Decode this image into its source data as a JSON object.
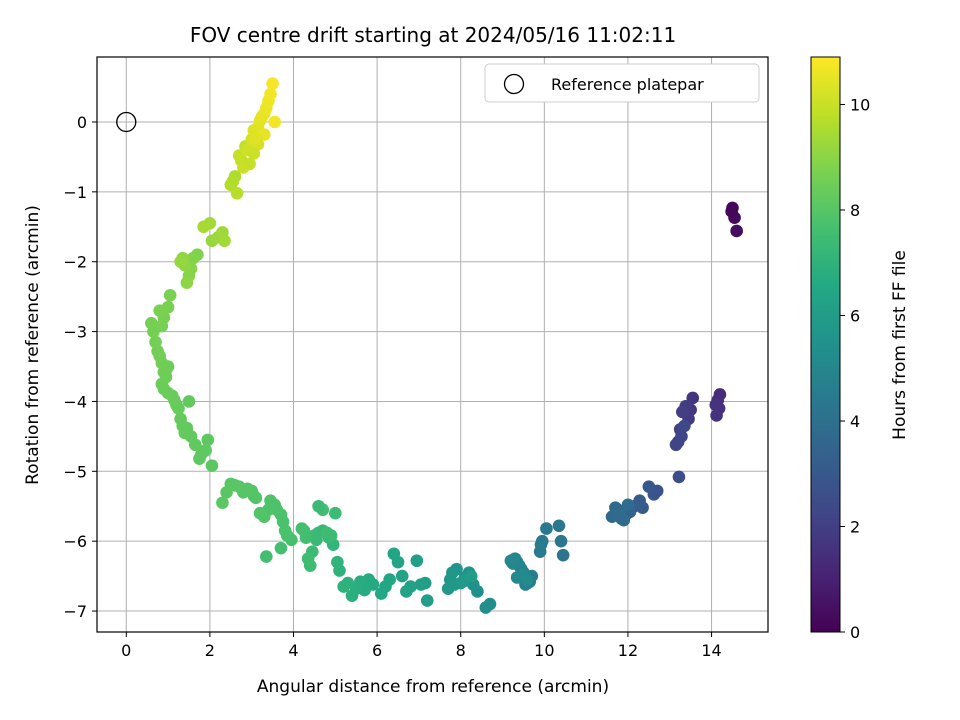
{
  "chart_data": {
    "type": "scatter",
    "title": "FOV centre drift starting at 2024/05/16 11:02:11",
    "xlabel": "Angular distance from reference (arcmin)",
    "ylabel": "Rotation from reference (arcmin)",
    "xlim": [
      -0.7,
      15.35
    ],
    "ylim": [
      -7.3,
      0.93
    ],
    "xticks": [
      0,
      2,
      4,
      6,
      8,
      10,
      12,
      14
    ],
    "yticks": [
      -7,
      -6,
      -5,
      -4,
      -3,
      -2,
      -1,
      0
    ],
    "grid": true,
    "legend_position": "top-right",
    "legend": {
      "label": "Reference platepar"
    },
    "reference_point": {
      "x": 0,
      "y": 0
    },
    "colorbar": {
      "label": "Hours from first FF file",
      "range": [
        0,
        10.9
      ],
      "ticks": [
        0,
        2,
        4,
        6,
        8,
        10
      ],
      "colormap": "viridis"
    },
    "series": [
      {
        "x": [
          14.5,
          14.55,
          14.6,
          14.48,
          14.2,
          14.15,
          14.18,
          14.12,
          14.1,
          13.55,
          13.5,
          13.45,
          13.38,
          13.3,
          13.25,
          13.2,
          13.15,
          13.28,
          13.35,
          13.22,
          12.7,
          12.62,
          12.5,
          12.35,
          12.28,
          12.15,
          12.05,
          11.95,
          11.85,
          11.75,
          11.62,
          11.7,
          11.8,
          11.9,
          12.0,
          10.45,
          10.4,
          10.35,
          10.05,
          9.95,
          9.9,
          9.92,
          9.7,
          9.65,
          9.6,
          9.55,
          9.5,
          9.45,
          9.4,
          9.35,
          9.3,
          9.25,
          9.2,
          9.35,
          9.48,
          9.58,
          8.7,
          8.6,
          8.4,
          8.3,
          8.2,
          8.1,
          8.0,
          7.9,
          7.8,
          7.75,
          7.7,
          7.85,
          8.05,
          8.25,
          7.2,
          7.15,
          7.05,
          6.95,
          6.8,
          6.7,
          6.6,
          6.5,
          6.4,
          6.3,
          6.2,
          6.1,
          5.9,
          5.8,
          5.7,
          5.6,
          5.5,
          5.4,
          5.3,
          5.2,
          5.1,
          5.05,
          4.95,
          4.85,
          4.7,
          4.6,
          4.55,
          4.5,
          4.45,
          4.4,
          4.35,
          4.3,
          4.25,
          4.2,
          4.7,
          4.8,
          4.9,
          5.0,
          4.6,
          3.95,
          3.85,
          3.8,
          3.75,
          3.7,
          3.6,
          3.55,
          3.45,
          3.4,
          3.3,
          3.2,
          3.1,
          3.05,
          3.0,
          2.9,
          2.8,
          2.7,
          2.6,
          2.5,
          2.4,
          2.3,
          3.35,
          3.7,
          2.05,
          1.95,
          1.9,
          1.8,
          1.75,
          1.65,
          1.55,
          1.45,
          1.4,
          1.3,
          1.25,
          1.2,
          1.15,
          1.1,
          1.0,
          0.9,
          0.85,
          1.5,
          1.35,
          1.0,
          0.95,
          0.9,
          0.85,
          0.8,
          0.75,
          0.7,
          0.65,
          0.6,
          0.85,
          0.9,
          1.0,
          1.05,
          0.8,
          0.95,
          1.7,
          1.6,
          1.55,
          1.5,
          1.45,
          1.4,
          1.35,
          1.3,
          2.05,
          2.2,
          2.3,
          2.35,
          2.0,
          1.85,
          2.6,
          2.55,
          2.5,
          2.65,
          2.75,
          2.85,
          2.7,
          2.8,
          2.9,
          3.0,
          3.05,
          3.1,
          3.15,
          3.2,
          3.25,
          3.3,
          3.35,
          3.4,
          3.5,
          3.45,
          3.55,
          3.3,
          3.15,
          3.05,
          2.95,
          3.1
        ],
        "y": [
          -1.23,
          -1.37,
          -1.56,
          -1.28,
          -3.9,
          -3.98,
          -4.1,
          -4.2,
          -4.05,
          -3.95,
          -4.12,
          -4.25,
          -4.07,
          -4.15,
          -4.4,
          -4.58,
          -4.62,
          -4.5,
          -4.35,
          -5.08,
          -5.28,
          -5.33,
          -5.22,
          -5.52,
          -5.42,
          -5.5,
          -5.58,
          -5.62,
          -5.68,
          -5.55,
          -5.65,
          -5.52,
          -5.6,
          -5.7,
          -5.48,
          -6.2,
          -6.0,
          -5.78,
          -5.82,
          -6.0,
          -6.15,
          -6.05,
          -6.5,
          -6.58,
          -6.6,
          -6.62,
          -6.45,
          -6.4,
          -6.35,
          -6.3,
          -6.25,
          -6.32,
          -6.28,
          -6.52,
          -6.48,
          -6.55,
          -6.9,
          -6.95,
          -6.72,
          -6.62,
          -6.45,
          -6.52,
          -6.6,
          -6.4,
          -6.45,
          -6.55,
          -6.68,
          -6.62,
          -6.58,
          -6.5,
          -6.85,
          -6.6,
          -6.62,
          -6.28,
          -6.65,
          -6.72,
          -6.5,
          -6.3,
          -6.18,
          -6.55,
          -6.65,
          -6.75,
          -6.62,
          -6.55,
          -6.7,
          -6.58,
          -6.68,
          -6.78,
          -6.6,
          -6.65,
          -6.42,
          -6.3,
          -6.05,
          -5.95,
          -5.85,
          -5.88,
          -5.98,
          -5.92,
          -6.15,
          -6.35,
          -6.25,
          -5.95,
          -5.85,
          -5.82,
          -5.55,
          -5.88,
          -5.92,
          -5.6,
          -5.5,
          -5.98,
          -5.92,
          -5.85,
          -5.72,
          -5.62,
          -5.55,
          -5.48,
          -5.42,
          -5.55,
          -5.65,
          -5.6,
          -5.38,
          -5.35,
          -5.28,
          -5.25,
          -5.3,
          -5.22,
          -5.2,
          -5.18,
          -5.3,
          -5.45,
          -6.22,
          -6.1,
          -4.92,
          -4.55,
          -4.7,
          -4.75,
          -4.82,
          -4.62,
          -4.5,
          -4.38,
          -4.45,
          -4.25,
          -4.1,
          -4.05,
          -3.98,
          -3.92,
          -3.88,
          -3.82,
          -3.75,
          -4.0,
          -4.35,
          -3.5,
          -3.55,
          -3.58,
          -3.45,
          -3.35,
          -3.28,
          -3.15,
          -3.0,
          -2.88,
          -2.92,
          -2.8,
          -2.65,
          -2.48,
          -2.7,
          -3.65,
          -1.9,
          -1.95,
          -2.1,
          -2.2,
          -2.3,
          -2.05,
          -1.95,
          -2.0,
          -1.7,
          -1.65,
          -1.58,
          -1.7,
          -1.45,
          -1.5,
          -0.78,
          -0.85,
          -0.9,
          -1.02,
          -0.55,
          -0.35,
          -0.48,
          -0.65,
          -0.4,
          -0.25,
          -0.12,
          -0.28,
          -0.08,
          0.02,
          0.08,
          0.12,
          0.2,
          0.3,
          0.55,
          0.4,
          0.0,
          -0.18,
          -0.32,
          -0.45,
          -0.6,
          -0.22
        ],
        "hours": [
          0.15,
          0.25,
          0.35,
          0.2,
          1.3,
          1.38,
          1.45,
          1.52,
          1.6,
          1.68,
          1.76,
          1.84,
          1.92,
          2.0,
          2.08,
          2.16,
          2.24,
          2.32,
          2.4,
          2.55,
          2.75,
          2.85,
          2.95,
          3.05,
          3.15,
          3.25,
          3.35,
          3.45,
          3.55,
          3.6,
          3.65,
          3.7,
          3.75,
          3.8,
          3.85,
          4.2,
          4.25,
          4.3,
          4.35,
          4.4,
          4.45,
          4.5,
          4.55,
          4.6,
          4.65,
          4.7,
          4.75,
          4.8,
          4.85,
          4.9,
          4.95,
          5.0,
          5.05,
          5.1,
          5.15,
          5.2,
          5.3,
          5.35,
          5.4,
          5.45,
          5.5,
          5.55,
          5.6,
          5.65,
          5.7,
          5.75,
          5.8,
          5.85,
          5.9,
          5.95,
          6.0,
          6.05,
          6.1,
          6.15,
          6.2,
          6.25,
          6.3,
          6.35,
          6.4,
          6.45,
          6.5,
          6.55,
          6.6,
          6.65,
          6.7,
          6.75,
          6.8,
          6.85,
          6.9,
          6.95,
          7.0,
          7.05,
          7.1,
          7.15,
          7.2,
          7.25,
          7.3,
          7.35,
          7.4,
          7.45,
          7.5,
          7.55,
          7.6,
          7.65,
          7.55,
          7.5,
          7.45,
          7.4,
          7.35,
          7.7,
          7.72,
          7.74,
          7.76,
          7.78,
          7.8,
          7.82,
          7.84,
          7.86,
          7.88,
          7.9,
          7.92,
          7.94,
          7.96,
          7.98,
          8.0,
          8.02,
          8.04,
          8.06,
          8.08,
          8.1,
          7.6,
          7.65,
          8.12,
          8.14,
          8.16,
          8.18,
          8.2,
          8.22,
          8.24,
          8.26,
          8.28,
          8.3,
          8.32,
          8.34,
          8.36,
          8.38,
          8.4,
          8.42,
          8.44,
          8.25,
          8.3,
          8.46,
          8.48,
          8.5,
          8.52,
          8.54,
          8.56,
          8.58,
          8.6,
          8.62,
          8.64,
          8.66,
          8.68,
          8.7,
          8.72,
          8.45,
          8.8,
          8.85,
          8.9,
          8.95,
          9.0,
          9.05,
          9.1,
          9.15,
          9.2,
          9.25,
          9.3,
          9.35,
          9.4,
          9.45,
          9.55,
          9.6,
          9.65,
          9.7,
          9.8,
          9.9,
          9.95,
          10.0,
          10.1,
          10.2,
          10.3,
          10.35,
          10.4,
          10.45,
          10.5,
          10.55,
          10.6,
          10.65,
          10.8,
          10.7,
          10.75,
          10.5,
          10.25,
          10.05,
          9.95,
          10.4
        ]
      }
    ]
  }
}
